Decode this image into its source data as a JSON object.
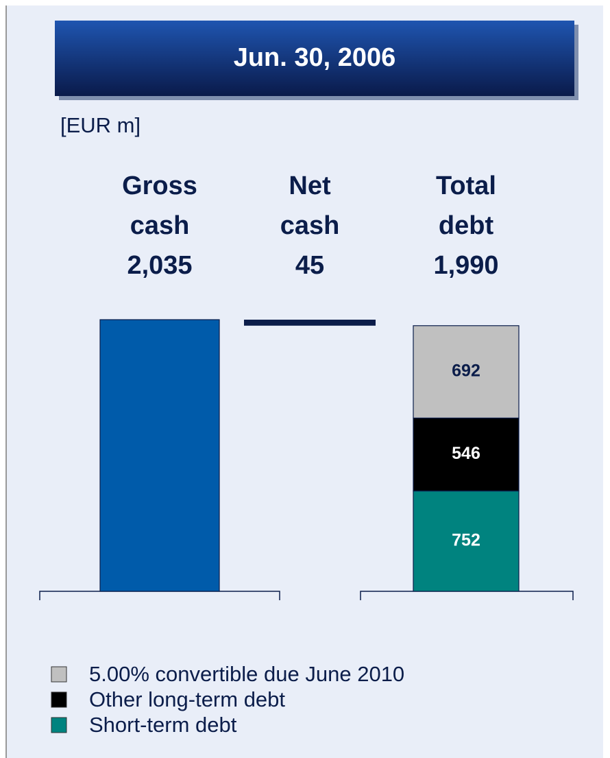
{
  "chart_data": {
    "type": "cash_debt",
    "title": "Jun. 30, 2006",
    "unit": "[EUR m]",
    "columns": [
      {
        "name": "Gross cash",
        "value": 2035,
        "value_label": "2,035",
        "color": "#005baa"
      },
      {
        "name": "Net cash",
        "value": 45,
        "value_label": "45",
        "color": "#0b1d4a"
      },
      {
        "name": "Total debt",
        "value": 1990,
        "value_label": "1,990"
      }
    ],
    "stack": [
      {
        "name": "Short-term debt",
        "value": 752,
        "color": "#00837f",
        "label_color": "#ffffff"
      },
      {
        "name": "Other long-term debt",
        "value": 546,
        "color": "#000000",
        "label_color": "#ffffff"
      },
      {
        "name": "5.00% convertible due June 2010",
        "value": 692,
        "color": "#c0c0c0",
        "label_color": "#0b1d4a"
      }
    ]
  }
}
